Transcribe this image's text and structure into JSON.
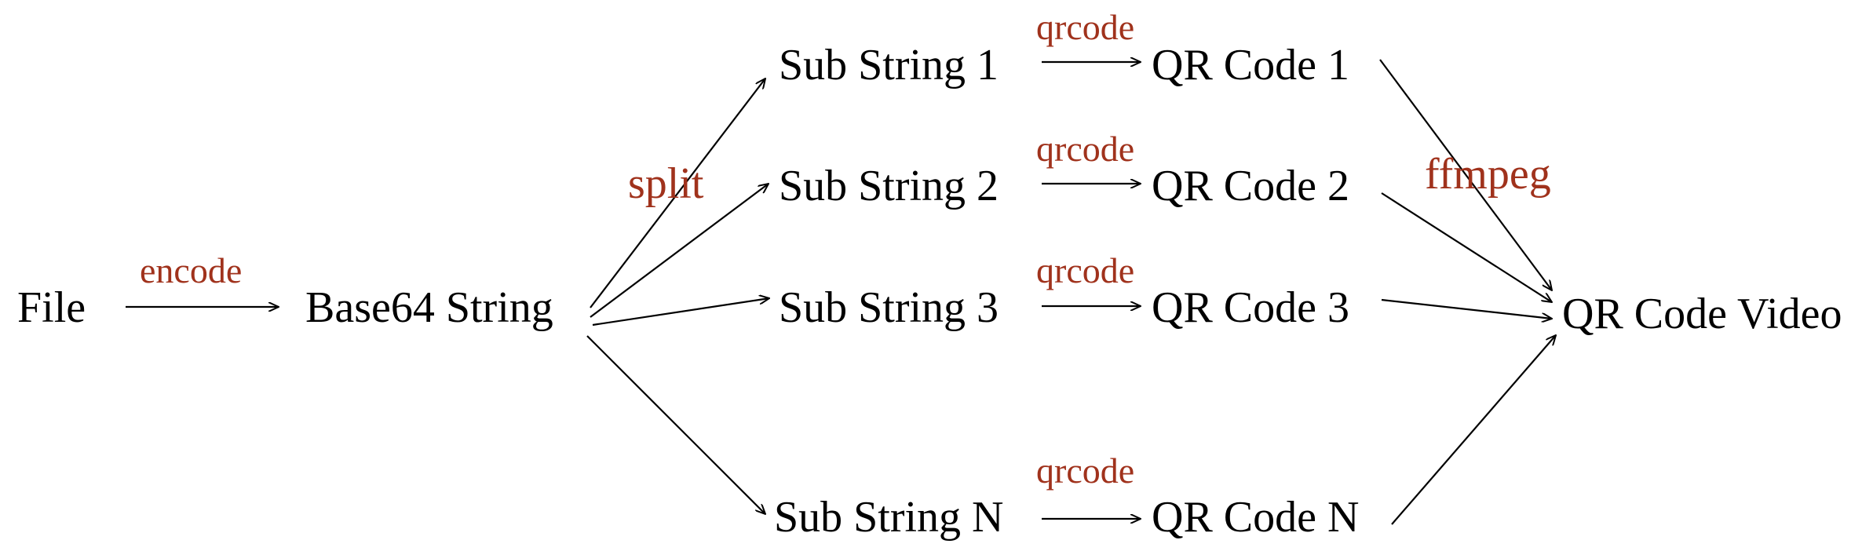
{
  "colors": {
    "node_text": "#000000",
    "edge_label": "#a0321c",
    "arrow": "#000000"
  },
  "nodes": {
    "file": "File",
    "base64": "Base64 String",
    "sub1": "Sub String 1",
    "sub2": "Sub String 2",
    "sub3": "Sub String 3",
    "subN": "Sub String N",
    "qr1": "QR Code 1",
    "qr2": "QR Code 2",
    "qr3": "QR Code 3",
    "qrN": "QR Code N",
    "video": "QR Code Video"
  },
  "edge_labels": {
    "encode": "encode",
    "split": "split",
    "qrcode1": "qrcode",
    "qrcode2": "qrcode",
    "qrcode3": "qrcode",
    "qrcodeN": "qrcode",
    "ffmpeg": "ffmpeg"
  }
}
